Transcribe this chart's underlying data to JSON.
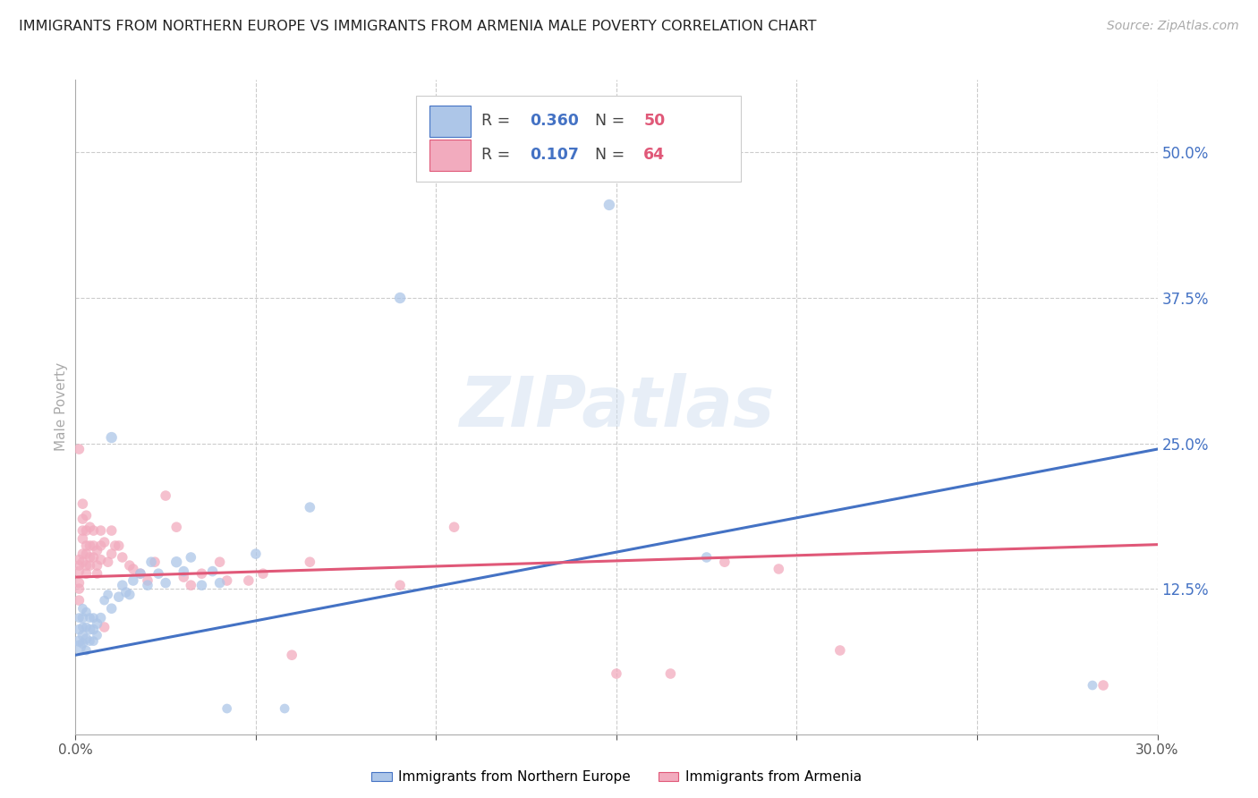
{
  "title": "IMMIGRANTS FROM NORTHERN EUROPE VS IMMIGRANTS FROM ARMENIA MALE POVERTY CORRELATION CHART",
  "source": "Source: ZipAtlas.com",
  "ylabel": "Male Poverty",
  "xlim": [
    0.0,
    0.3
  ],
  "ylim": [
    0.0,
    0.5625
  ],
  "ytick_labels_right": [
    "50.0%",
    "37.5%",
    "25.0%",
    "12.5%"
  ],
  "ytick_vals_right": [
    0.5,
    0.375,
    0.25,
    0.125
  ],
  "grid_color": "#cccccc",
  "watermark": "ZIPatlas",
  "series1_label": "Immigrants from Northern Europe",
  "series2_label": "Immigrants from Armenia",
  "series1_color": "#adc6e8",
  "series2_color": "#f2abbe",
  "series1_line_color": "#4472c4",
  "series2_line_color": "#e05878",
  "R1": "0.360",
  "N1": "50",
  "R2": "0.107",
  "N2": "64",
  "trendline1_y_start": 0.068,
  "trendline1_y_end": 0.245,
  "trendline2_y_start": 0.135,
  "trendline2_y_end": 0.163,
  "background_color": "#ffffff",
  "axis_color": "#aaaaaa",
  "series1_x": [
    0.001,
    0.001,
    0.001,
    0.001,
    0.002,
    0.002,
    0.002,
    0.002,
    0.002,
    0.003,
    0.003,
    0.003,
    0.003,
    0.004,
    0.004,
    0.004,
    0.005,
    0.005,
    0.005,
    0.006,
    0.006,
    0.007,
    0.008,
    0.009,
    0.01,
    0.01,
    0.012,
    0.013,
    0.014,
    0.015,
    0.016,
    0.018,
    0.02,
    0.021,
    0.023,
    0.025,
    0.028,
    0.03,
    0.032,
    0.035,
    0.038,
    0.04,
    0.042,
    0.05,
    0.058,
    0.065,
    0.09,
    0.148,
    0.175,
    0.282
  ],
  "series1_y": [
    0.075,
    0.08,
    0.09,
    0.1,
    0.078,
    0.085,
    0.092,
    0.1,
    0.108,
    0.072,
    0.082,
    0.092,
    0.105,
    0.08,
    0.09,
    0.1,
    0.08,
    0.09,
    0.1,
    0.085,
    0.095,
    0.1,
    0.115,
    0.12,
    0.108,
    0.255,
    0.118,
    0.128,
    0.122,
    0.12,
    0.132,
    0.138,
    0.128,
    0.148,
    0.138,
    0.13,
    0.148,
    0.14,
    0.152,
    0.128,
    0.14,
    0.13,
    0.022,
    0.155,
    0.022,
    0.195,
    0.375,
    0.455,
    0.152,
    0.042
  ],
  "series1_sizes": [
    120,
    80,
    70,
    60,
    70,
    70,
    60,
    70,
    60,
    60,
    70,
    60,
    60,
    60,
    70,
    60,
    60,
    70,
    60,
    60,
    70,
    70,
    60,
    60,
    70,
    80,
    70,
    70,
    70,
    70,
    70,
    70,
    70,
    70,
    70,
    70,
    80,
    70,
    70,
    70,
    70,
    70,
    60,
    70,
    60,
    70,
    80,
    80,
    70,
    60
  ],
  "series2_x": [
    0.001,
    0.001,
    0.001,
    0.001,
    0.001,
    0.001,
    0.001,
    0.002,
    0.002,
    0.002,
    0.002,
    0.002,
    0.002,
    0.003,
    0.003,
    0.003,
    0.003,
    0.003,
    0.003,
    0.004,
    0.004,
    0.004,
    0.004,
    0.005,
    0.005,
    0.005,
    0.006,
    0.006,
    0.006,
    0.007,
    0.007,
    0.007,
    0.008,
    0.008,
    0.009,
    0.01,
    0.01,
    0.011,
    0.012,
    0.013,
    0.015,
    0.016,
    0.018,
    0.02,
    0.022,
    0.025,
    0.028,
    0.03,
    0.032,
    0.035,
    0.04,
    0.042,
    0.048,
    0.052,
    0.06,
    0.065,
    0.09,
    0.105,
    0.15,
    0.165,
    0.18,
    0.195,
    0.212,
    0.285
  ],
  "series2_y": [
    0.245,
    0.15,
    0.145,
    0.14,
    0.13,
    0.125,
    0.115,
    0.198,
    0.185,
    0.175,
    0.168,
    0.155,
    0.148,
    0.188,
    0.175,
    0.162,
    0.155,
    0.145,
    0.138,
    0.178,
    0.162,
    0.152,
    0.145,
    0.175,
    0.162,
    0.152,
    0.158,
    0.145,
    0.138,
    0.175,
    0.162,
    0.15,
    0.165,
    0.092,
    0.148,
    0.175,
    0.155,
    0.162,
    0.162,
    0.152,
    0.145,
    0.142,
    0.138,
    0.132,
    0.148,
    0.205,
    0.178,
    0.135,
    0.128,
    0.138,
    0.148,
    0.132,
    0.132,
    0.138,
    0.068,
    0.148,
    0.128,
    0.178,
    0.052,
    0.052,
    0.148,
    0.142,
    0.072,
    0.042
  ],
  "series2_sizes": [
    70,
    70,
    70,
    70,
    70,
    70,
    70,
    70,
    70,
    70,
    70,
    70,
    70,
    70,
    70,
    70,
    70,
    70,
    70,
    70,
    70,
    70,
    70,
    70,
    70,
    70,
    70,
    70,
    70,
    70,
    70,
    70,
    70,
    70,
    70,
    70,
    70,
    70,
    70,
    70,
    70,
    70,
    70,
    70,
    70,
    70,
    70,
    70,
    70,
    70,
    70,
    70,
    70,
    70,
    70,
    70,
    70,
    70,
    70,
    70,
    70,
    70,
    70,
    70
  ]
}
